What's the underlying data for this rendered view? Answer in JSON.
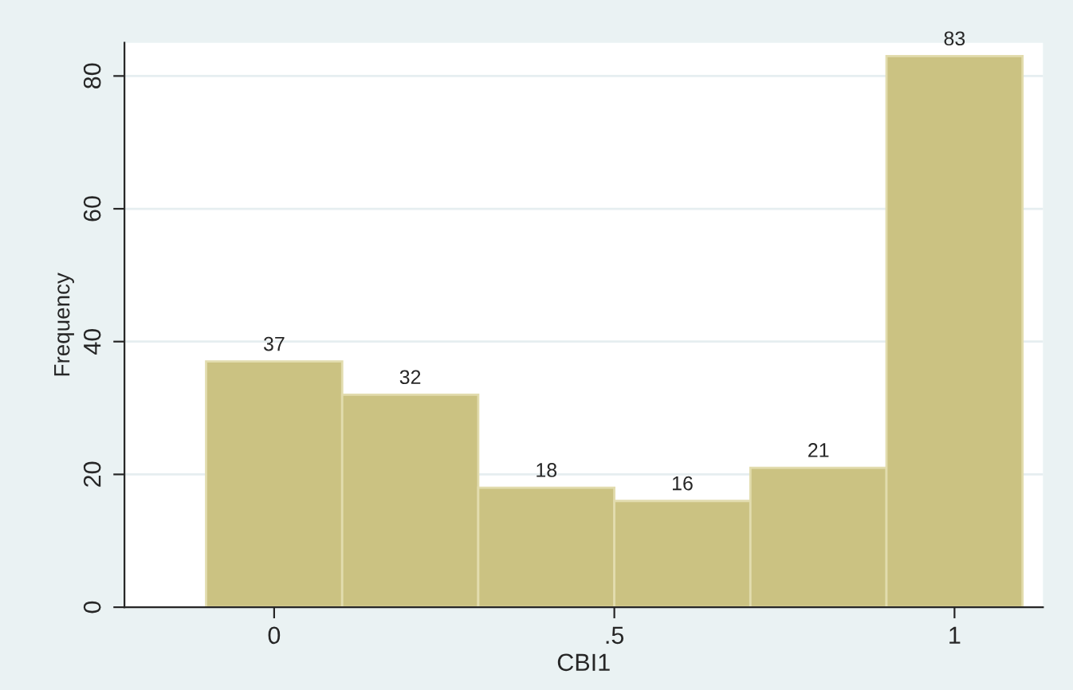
{
  "chart_data": {
    "type": "histogram",
    "xlabel": "CBI1",
    "ylabel": "Frequency",
    "bins": [
      -0.1,
      0.1,
      0.3,
      0.5,
      0.7,
      0.9,
      1.1
    ],
    "values": [
      37,
      32,
      18,
      16,
      21,
      83
    ],
    "color": "#cbc282",
    "data_labels": true,
    "xlim": [
      -0.22,
      1.13
    ],
    "xticks": [
      0,
      {
        "value": 0.5,
        "label": ".5"
      },
      1
    ],
    "ylim": [
      0,
      85
    ],
    "yticks": [
      0,
      20,
      40,
      60,
      80
    ],
    "grid": "y"
  }
}
